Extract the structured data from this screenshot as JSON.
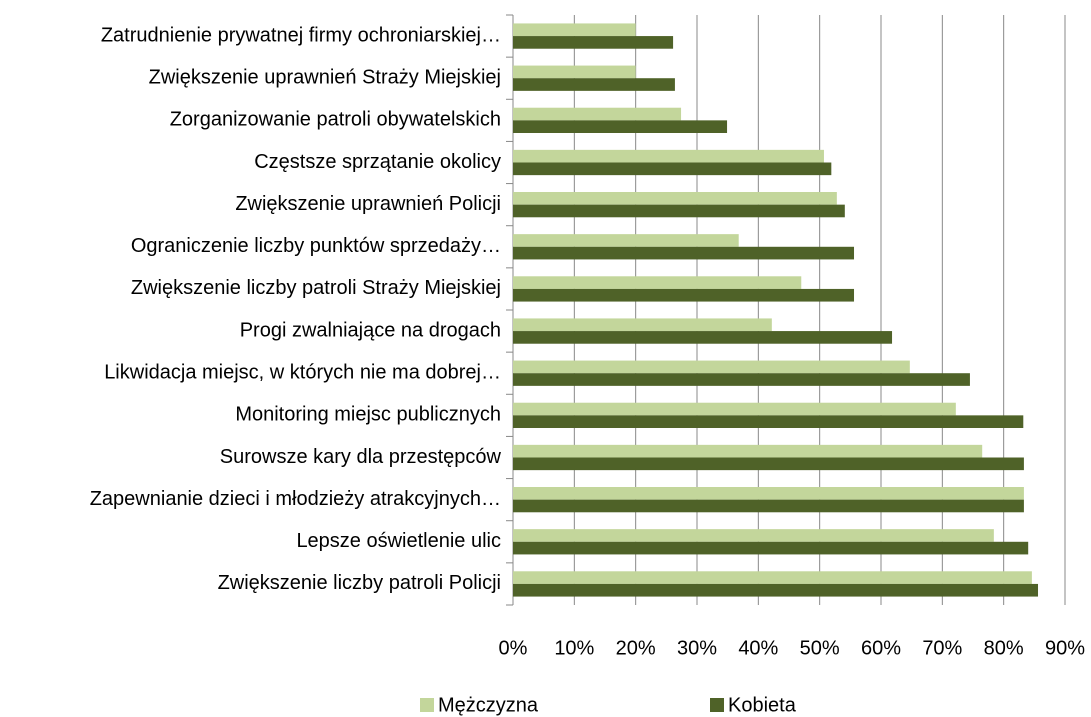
{
  "chart_data": {
    "type": "bar",
    "orientation": "horizontal",
    "categories": [
      "Zatrudnienie prywatnej firmy ochroniarskiej…",
      "Zwiększenie uprawnień Straży Miejskiej",
      "Zorganizowanie patroli obywatelskich",
      "Częstsze sprzątanie okolicy",
      "Zwiększenie uprawnień Policji",
      "Ograniczenie liczby punktów sprzedaży…",
      "Zwiększenie liczby patroli Straży Miejskiej",
      "Progi zwalniające na drogach",
      "Likwidacja miejsc, w których nie ma dobrej…",
      "Monitoring miejsc publicznych",
      "Surowsze kary dla przestępców",
      "Zapewnianie dzieci i młodzieży atrakcyjnych…",
      "Lepsze oświetlenie ulic",
      "Zwiększenie liczby patroli Policji"
    ],
    "series": [
      {
        "name": "Mężczyzna",
        "color": "#c3d69b",
        "values": [
          20.0,
          20.0,
          27.4,
          50.7,
          52.8,
          36.8,
          47.0,
          42.2,
          64.7,
          72.2,
          76.5,
          83.3,
          78.4,
          84.6
        ]
      },
      {
        "name": "Kobieta",
        "color": "#4f6228",
        "values": [
          26.1,
          26.4,
          34.9,
          51.9,
          54.1,
          55.6,
          55.6,
          61.8,
          74.5,
          83.2,
          83.3,
          83.3,
          84.0,
          85.6
        ]
      }
    ],
    "xlim": [
      0,
      90
    ],
    "xticks": [
      {
        "value": 0,
        "label": "0%"
      },
      {
        "value": 10,
        "label": "10%"
      },
      {
        "value": 20,
        "label": "20%"
      },
      {
        "value": 30,
        "label": "30%"
      },
      {
        "value": 40,
        "label": "40%"
      },
      {
        "value": 50,
        "label": "50%"
      },
      {
        "value": 60,
        "label": "60%"
      },
      {
        "value": 70,
        "label": "70%"
      },
      {
        "value": 80,
        "label": "80%"
      },
      {
        "value": 90,
        "label": "90%"
      }
    ],
    "grid": true,
    "legend": "bottom"
  }
}
